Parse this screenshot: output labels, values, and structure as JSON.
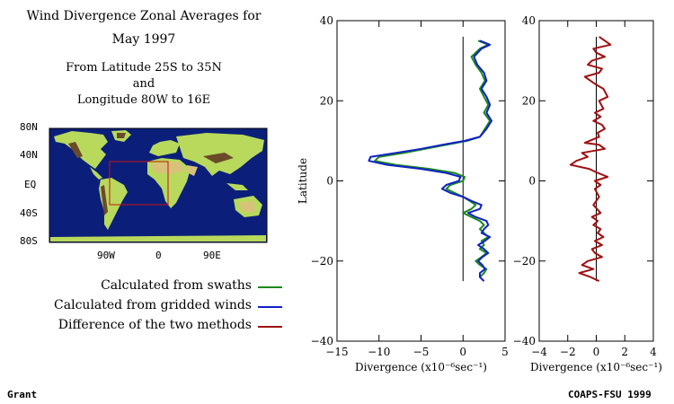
{
  "header": {
    "title_line1": "Wind Divergence Zonal Averages for",
    "title_line2": "May 1997",
    "sub_line1": "From Latitude 25S to 35N",
    "sub_line2": "and",
    "sub_line3": "Longitude 80W to 16E"
  },
  "map": {
    "lat_labels": [
      "80N",
      "40N",
      "EQ",
      "40S",
      "80S"
    ],
    "lon_labels": [
      "90W",
      "0",
      "90E"
    ],
    "colors": {
      "ocean": "#0b1f7a",
      "land": "#b8d95c",
      "desert": "#d8c27a",
      "mountain": "#6b4a2a",
      "box": "#cc1010"
    }
  },
  "legend": {
    "items": [
      {
        "label": "Calculated from swaths",
        "color": "#1a8a1a"
      },
      {
        "label": "Calculated from gridded winds",
        "color": "#1020c8"
      },
      {
        "label": "Difference of the two methods",
        "color": "#a01010"
      }
    ]
  },
  "footer": {
    "left": "Grant",
    "right": "COAPS-FSU 1999"
  },
  "chart_data": [
    {
      "type": "line",
      "ylabel": "Latitude",
      "xlabel": "Divergence (x10⁻⁶sec⁻¹)",
      "xlim": [
        -15,
        5
      ],
      "ylim": [
        -40,
        40
      ],
      "xticks": [
        -15,
        -10,
        -5,
        0,
        5
      ],
      "yticks": [
        -40,
        -20,
        0,
        20,
        40
      ],
      "series": [
        {
          "name": "Calculated from swaths",
          "color": "#1a8a1a",
          "points": [
            [
              1.8,
              35
            ],
            [
              3.0,
              34
            ],
            [
              2.0,
              33
            ],
            [
              1.0,
              31
            ],
            [
              1.5,
              29
            ],
            [
              2.2,
              27
            ],
            [
              2.6,
              25
            ],
            [
              2.0,
              23
            ],
            [
              2.5,
              21
            ],
            [
              3.0,
              19
            ],
            [
              2.5,
              17
            ],
            [
              3.2,
              15
            ],
            [
              2.6,
              13
            ],
            [
              2.0,
              11
            ],
            [
              0.5,
              10
            ],
            [
              -2.0,
              9
            ],
            [
              -4.5,
              8
            ],
            [
              -7.0,
              7
            ],
            [
              -10.0,
              6
            ],
            [
              -10.5,
              5
            ],
            [
              -8.0,
              4
            ],
            [
              -4.0,
              3
            ],
            [
              -1.0,
              2
            ],
            [
              0.2,
              1
            ],
            [
              0.0,
              0
            ],
            [
              -1.5,
              -1
            ],
            [
              -2.0,
              -2
            ],
            [
              -1.0,
              -3
            ],
            [
              0.0,
              -4
            ],
            [
              0.8,
              -5
            ],
            [
              1.5,
              -6
            ],
            [
              1.0,
              -7
            ],
            [
              0.0,
              -8
            ],
            [
              1.0,
              -9
            ],
            [
              2.0,
              -10
            ],
            [
              2.5,
              -11
            ],
            [
              2.0,
              -12
            ],
            [
              2.5,
              -13
            ],
            [
              3.0,
              -14
            ],
            [
              2.2,
              -15
            ],
            [
              2.5,
              -16
            ],
            [
              2.0,
              -17
            ],
            [
              2.8,
              -18
            ],
            [
              2.2,
              -19
            ],
            [
              1.5,
              -20
            ],
            [
              2.0,
              -21
            ],
            [
              2.8,
              -22
            ],
            [
              2.5,
              -23
            ],
            [
              2.0,
              -24
            ]
          ]
        },
        {
          "name": "Calculated from gridded winds",
          "color": "#1020c8",
          "points": [
            [
              2.0,
              35
            ],
            [
              3.2,
              34
            ],
            [
              2.2,
              33
            ],
            [
              1.3,
              31
            ],
            [
              1.7,
              29
            ],
            [
              2.5,
              27
            ],
            [
              2.8,
              25
            ],
            [
              2.2,
              23
            ],
            [
              2.8,
              21
            ],
            [
              3.2,
              19
            ],
            [
              2.8,
              17
            ],
            [
              3.4,
              15
            ],
            [
              2.8,
              13
            ],
            [
              2.0,
              11
            ],
            [
              0.2,
              10
            ],
            [
              -2.5,
              9
            ],
            [
              -5.0,
              8
            ],
            [
              -8.0,
              7
            ],
            [
              -11.0,
              6
            ],
            [
              -11.2,
              5
            ],
            [
              -9.0,
              4
            ],
            [
              -5.0,
              3
            ],
            [
              -2.0,
              2
            ],
            [
              -0.3,
              1
            ],
            [
              -0.5,
              0
            ],
            [
              -2.0,
              -1
            ],
            [
              -2.5,
              -2
            ],
            [
              -1.5,
              -3
            ],
            [
              0.0,
              -4
            ],
            [
              1.0,
              -5
            ],
            [
              2.2,
              -6
            ],
            [
              2.0,
              -7
            ],
            [
              0.6,
              -8
            ],
            [
              1.5,
              -9
            ],
            [
              2.8,
              -10
            ],
            [
              3.0,
              -11
            ],
            [
              2.5,
              -12
            ],
            [
              2.2,
              -13
            ],
            [
              3.2,
              -14
            ],
            [
              2.6,
              -15
            ],
            [
              1.8,
              -16
            ],
            [
              2.5,
              -17
            ],
            [
              3.0,
              -18
            ],
            [
              2.3,
              -19
            ],
            [
              1.8,
              -20
            ],
            [
              2.3,
              -21
            ],
            [
              2.6,
              -22
            ],
            [
              2.0,
              -23
            ],
            [
              2.0,
              -24
            ],
            [
              2.5,
              -25
            ]
          ]
        }
      ]
    },
    {
      "type": "line",
      "xlabel": "Divergence (x10⁻⁶sec⁻¹)",
      "xlim": [
        -4,
        4
      ],
      "ylim": [
        -40,
        40
      ],
      "xticks": [
        -4,
        -2,
        0,
        2,
        4
      ],
      "yticks": [
        -40,
        -20,
        0,
        20,
        40
      ],
      "series": [
        {
          "name": "Difference of the two methods",
          "color": "#a01010",
          "points": [
            [
              0.2,
              36
            ],
            [
              1.0,
              34
            ],
            [
              -0.2,
              33
            ],
            [
              0.0,
              32
            ],
            [
              0.6,
              31
            ],
            [
              -0.3,
              30
            ],
            [
              -0.6,
              29
            ],
            [
              0.4,
              28
            ],
            [
              0.2,
              27
            ],
            [
              -0.8,
              26
            ],
            [
              -0.4,
              25
            ],
            [
              0.0,
              24
            ],
            [
              0.5,
              23
            ],
            [
              0.8,
              21
            ],
            [
              0.2,
              20
            ],
            [
              0.5,
              18
            ],
            [
              -0.1,
              17
            ],
            [
              0.3,
              16
            ],
            [
              -0.2,
              15
            ],
            [
              0.4,
              14
            ],
            [
              0.6,
              13
            ],
            [
              0.1,
              12
            ],
            [
              0.2,
              11
            ],
            [
              -0.8,
              9.5
            ],
            [
              0.2,
              9
            ],
            [
              0.6,
              8
            ],
            [
              -1.0,
              7
            ],
            [
              -0.6,
              6
            ],
            [
              -1.4,
              5
            ],
            [
              -1.8,
              4
            ],
            [
              -0.5,
              3
            ],
            [
              0.1,
              2
            ],
            [
              0.8,
              1
            ],
            [
              -0.1,
              0
            ],
            [
              0.3,
              -1
            ],
            [
              -0.1,
              -2
            ],
            [
              0.2,
              -4
            ],
            [
              -0.2,
              -6
            ],
            [
              0.3,
              -8
            ],
            [
              -0.3,
              -9
            ],
            [
              0.1,
              -10
            ],
            [
              -0.2,
              -11
            ],
            [
              0.3,
              -12
            ],
            [
              0.1,
              -13
            ],
            [
              0.5,
              -14
            ],
            [
              -0.1,
              -15
            ],
            [
              0.4,
              -16
            ],
            [
              -0.3,
              -17
            ],
            [
              -0.1,
              -18
            ],
            [
              0.4,
              -19
            ],
            [
              -0.6,
              -20
            ],
            [
              -1.0,
              -21
            ],
            [
              -0.2,
              -22
            ],
            [
              -1.2,
              -23
            ],
            [
              -0.4,
              -24
            ],
            [
              0.2,
              -25
            ]
          ]
        }
      ]
    }
  ]
}
